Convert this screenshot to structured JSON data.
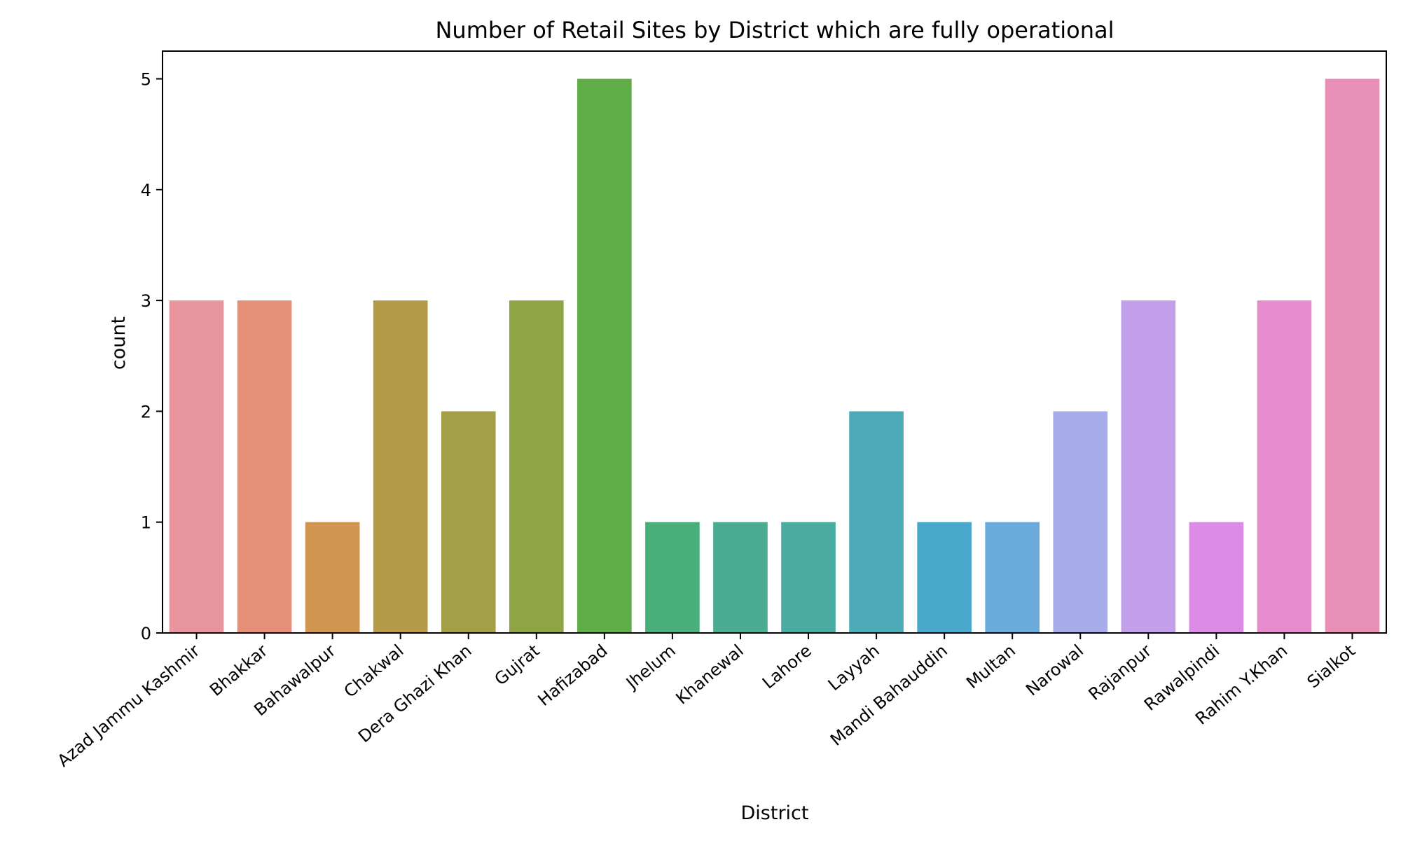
{
  "chart_data": {
    "type": "bar",
    "title": "Number of Retail Sites by District which are fully operational",
    "xlabel": "District",
    "ylabel": "count",
    "categories": [
      "Azad Jammu Kashmir",
      "Bhakkar",
      "Bahawalpur",
      "Chakwal",
      "Dera Ghazi Khan",
      "Gujrat",
      "Hafizabad",
      "Jhelum",
      "Khanewal",
      "Lahore",
      "Layyah",
      "Mandi Bahauddin",
      "Multan",
      "Narowal",
      "Rajanpur",
      "Rawalpindi",
      "Rahim Y.Khan",
      "Sialkot"
    ],
    "values": [
      3,
      3,
      1,
      3,
      2,
      3,
      5,
      1,
      1,
      1,
      2,
      1,
      1,
      2,
      3,
      1,
      3,
      5
    ],
    "colors": [
      "#e8959f",
      "#e5917a",
      "#d09550",
      "#b59b48",
      "#a39e48",
      "#8fa545",
      "#60ae48",
      "#48ae7b",
      "#4aac92",
      "#4aaca0",
      "#4cabb6",
      "#4aa8cc",
      "#6aabdc",
      "#a7ace8",
      "#c4a0ea",
      "#dd8ce6",
      "#e78ccf",
      "#e890b7"
    ],
    "yticks": [
      "0",
      "1",
      "2",
      "3",
      "4",
      "5"
    ],
    "ylim": [
      0,
      5.25
    ],
    "grid": false,
    "legend": "none"
  }
}
